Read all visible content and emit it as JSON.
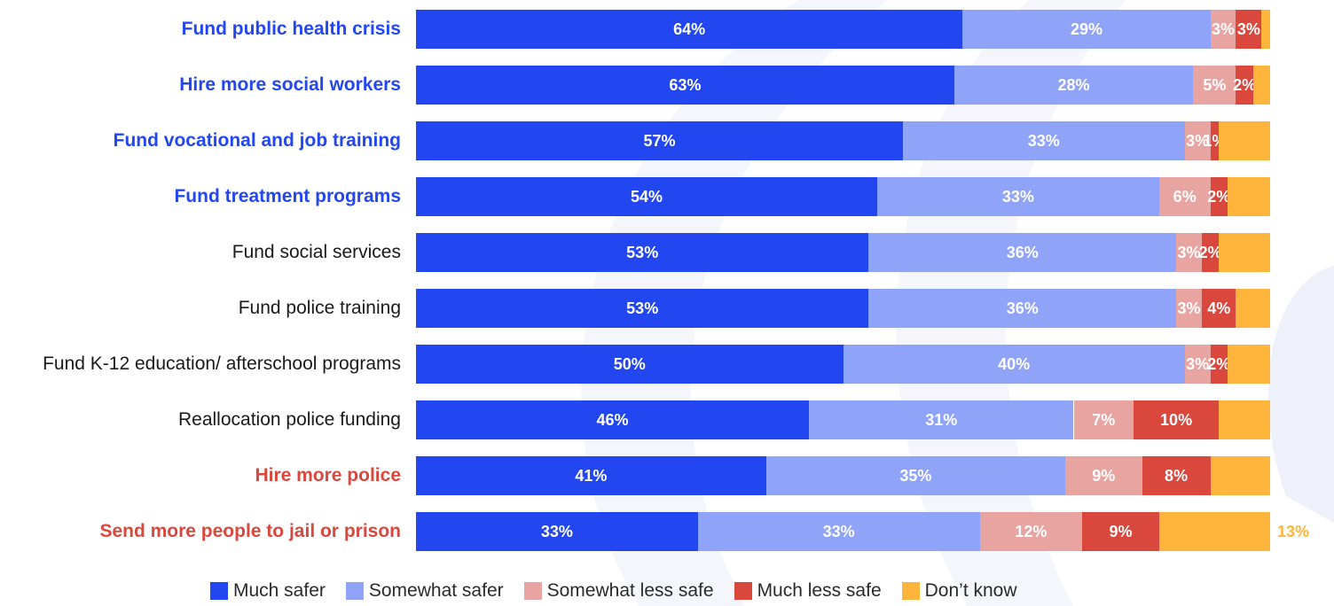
{
  "chart_data": {
    "type": "bar",
    "orientation": "horizontal",
    "stacked": true,
    "grid": false,
    "legend_position": "bottom",
    "categories": [
      "Fund public health crisis",
      "Hire more social workers",
      "Fund vocational and job training",
      "Fund treatment programs",
      "Fund social services",
      "Fund police training ",
      "Fund K-12 education/ afterschool programs",
      "Reallocation police funding",
      "Hire more police",
      "Send more people to jail or prison"
    ],
    "category_styles": [
      "blue",
      "blue",
      "blue",
      "blue",
      "plain",
      "plain",
      "plain",
      "plain",
      "red",
      "red"
    ],
    "series": [
      {
        "name": "Much safer",
        "color": "#2247f0",
        "values": [
          64,
          63,
          57,
          54,
          53,
          53,
          50,
          46,
          41,
          33
        ],
        "labels": [
          "64%",
          "63%",
          "57%",
          "54%",
          "53%",
          "53%",
          "50%",
          "46%",
          "41%",
          "33%"
        ]
      },
      {
        "name": "Somewhat safer",
        "color": "#8fa4f8",
        "values": [
          29,
          28,
          33,
          33,
          36,
          36,
          40,
          31,
          35,
          33
        ],
        "labels": [
          "29%",
          "28%",
          "33%",
          "33%",
          "36%",
          "36%",
          "40%",
          "31%",
          "35%",
          "33%"
        ]
      },
      {
        "name": "Somewhat less safe",
        "color": "#e8a4a1",
        "values": [
          3,
          5,
          3,
          6,
          3,
          3,
          3,
          7,
          9,
          12
        ],
        "labels": [
          "3%",
          "5%",
          "3%",
          "6%",
          "3%",
          "3%",
          "3%",
          "7%",
          "9%",
          "12%"
        ]
      },
      {
        "name": "Much less safe",
        "color": "#d9473d",
        "values": [
          3,
          2,
          1,
          2,
          2,
          4,
          2,
          10,
          8,
          9
        ],
        "labels": [
          "3%",
          "2%",
          "1%",
          "2%",
          "2%",
          "4%",
          "2%",
          "10%",
          "8%",
          "9%"
        ]
      },
      {
        "name": "Don’t know",
        "color": "#ffb43b",
        "values": [
          1,
          2,
          6,
          5,
          6,
          4,
          5,
          6,
          7,
          13
        ],
        "labels": [
          "",
          "",
          "",
          "",
          "",
          "",
          "",
          "",
          "",
          "13%"
        ]
      }
    ],
    "xlim": [
      0,
      100
    ]
  }
}
